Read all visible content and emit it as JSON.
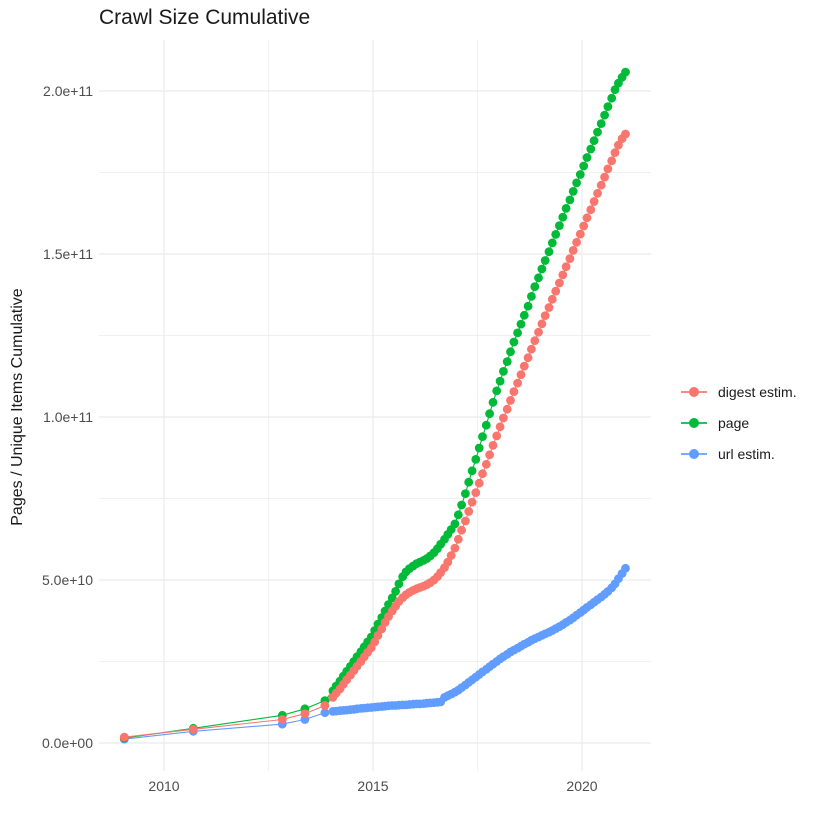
{
  "chart_data": {
    "type": "scatter",
    "title": "Crawl Size Cumulative",
    "xlabel": "",
    "ylabel": "Pages / Unique Items Cumulative",
    "legend_position": "right",
    "grid": true,
    "background": "#ffffff",
    "gridline_color": "#ebebeb",
    "tick_label_color": "#4d4d4d",
    "xlim": [
      2008.5,
      2021.6
    ],
    "ylim": [
      0,
      210000000000
    ],
    "y_units": "pages (values below in billions, 1e9)",
    "x_axis": {
      "major_ticks": [
        {
          "label": "2010",
          "year": 2010
        },
        {
          "label": "2015",
          "year": 2015
        },
        {
          "label": "2020",
          "year": 2020
        }
      ],
      "minor_years": [
        2012.5,
        2017.5
      ]
    },
    "y_axis": {
      "major_ticks": [
        {
          "label": "0.0e+00",
          "value_e9": 0
        },
        {
          "label": "5.0e+10",
          "value_e9": 50
        },
        {
          "label": "1.0e+11",
          "value_e9": 100
        },
        {
          "label": "1.5e+11",
          "value_e9": 150
        },
        {
          "label": "2.0e+11",
          "value_e9": 200
        }
      ],
      "minor_values_e9": [
        25,
        75,
        125,
        175
      ]
    },
    "series": [
      {
        "name": "digest estim.",
        "color": "#F8766D",
        "points": [
          [
            2009.05,
            1.8
          ],
          [
            2010.7,
            4.2
          ],
          [
            2012.83,
            7.2
          ],
          [
            2013.37,
            9
          ],
          [
            2013.85,
            11.5
          ],
          [
            2014.04,
            14
          ],
          [
            2014.12,
            15.3
          ],
          [
            2014.21,
            16.6
          ],
          [
            2014.29,
            18
          ],
          [
            2014.37,
            19.4
          ],
          [
            2014.46,
            20.8
          ],
          [
            2014.54,
            22.2
          ],
          [
            2014.62,
            23.6
          ],
          [
            2014.71,
            25
          ],
          [
            2014.79,
            26.4
          ],
          [
            2014.87,
            27.8
          ],
          [
            2014.96,
            29.2
          ],
          [
            2015.04,
            31
          ],
          [
            2015.12,
            33
          ],
          [
            2015.21,
            35
          ],
          [
            2015.29,
            37
          ],
          [
            2015.37,
            38.8
          ],
          [
            2015.46,
            40.5
          ],
          [
            2015.54,
            42
          ],
          [
            2015.62,
            43.4
          ],
          [
            2015.71,
            44.6
          ],
          [
            2015.79,
            45.5
          ],
          [
            2015.87,
            46.2
          ],
          [
            2015.96,
            46.8
          ],
          [
            2016.04,
            47.3
          ],
          [
            2016.12,
            47.7
          ],
          [
            2016.21,
            48.1
          ],
          [
            2016.29,
            48.6
          ],
          [
            2016.37,
            49.2
          ],
          [
            2016.46,
            50
          ],
          [
            2016.54,
            51
          ],
          [
            2016.62,
            52.3
          ],
          [
            2016.71,
            53.8
          ],
          [
            2016.79,
            55.5
          ],
          [
            2016.87,
            57.5
          ],
          [
            2016.96,
            59.8
          ],
          [
            2017.04,
            62.5
          ],
          [
            2017.12,
            65.3
          ],
          [
            2017.21,
            68.1
          ],
          [
            2017.29,
            71
          ],
          [
            2017.37,
            73.9
          ],
          [
            2017.46,
            76.8
          ],
          [
            2017.54,
            79.7
          ],
          [
            2017.62,
            82.6
          ],
          [
            2017.71,
            85.5
          ],
          [
            2017.79,
            88.4
          ],
          [
            2017.87,
            91.3
          ],
          [
            2017.96,
            94.2
          ],
          [
            2018.04,
            97
          ],
          [
            2018.12,
            99.7
          ],
          [
            2018.21,
            102.4
          ],
          [
            2018.29,
            105.1
          ],
          [
            2018.37,
            107.8
          ],
          [
            2018.46,
            110.4
          ],
          [
            2018.54,
            113
          ],
          [
            2018.62,
            115.6
          ],
          [
            2018.71,
            118.2
          ],
          [
            2018.79,
            120.8
          ],
          [
            2018.87,
            123.4
          ],
          [
            2018.96,
            126
          ],
          [
            2019.04,
            128.6
          ],
          [
            2019.12,
            131.1
          ],
          [
            2019.21,
            133.6
          ],
          [
            2019.29,
            136.1
          ],
          [
            2019.37,
            138.6
          ],
          [
            2019.46,
            141.1
          ],
          [
            2019.54,
            143.6
          ],
          [
            2019.62,
            146.1
          ],
          [
            2019.71,
            148.6
          ],
          [
            2019.79,
            151.1
          ],
          [
            2019.87,
            153.6
          ],
          [
            2019.96,
            156.1
          ],
          [
            2020.04,
            158.6
          ],
          [
            2020.12,
            161.1
          ],
          [
            2020.21,
            163.6
          ],
          [
            2020.29,
            166.1
          ],
          [
            2020.37,
            168.6
          ],
          [
            2020.46,
            171.1
          ],
          [
            2020.54,
            173.6
          ],
          [
            2020.62,
            176.1
          ],
          [
            2020.71,
            178.6
          ],
          [
            2020.79,
            181.1
          ],
          [
            2020.87,
            183.4
          ],
          [
            2020.96,
            185.4
          ],
          [
            2021.04,
            186.8
          ]
        ]
      },
      {
        "name": "page",
        "color": "#00BA38",
        "points": [
          [
            2009.05,
            1.5
          ],
          [
            2010.7,
            4.5
          ],
          [
            2012.83,
            8.5
          ],
          [
            2013.37,
            10.5
          ],
          [
            2013.85,
            13
          ],
          [
            2014.04,
            16
          ],
          [
            2014.12,
            17.5
          ],
          [
            2014.21,
            19
          ],
          [
            2014.29,
            20.5
          ],
          [
            2014.37,
            22
          ],
          [
            2014.46,
            23.5
          ],
          [
            2014.54,
            25
          ],
          [
            2014.62,
            26.5
          ],
          [
            2014.71,
            28
          ],
          [
            2014.79,
            29.5
          ],
          [
            2014.87,
            31
          ],
          [
            2014.96,
            32.5
          ],
          [
            2015.04,
            34.5
          ],
          [
            2015.12,
            36.5
          ],
          [
            2015.21,
            38.5
          ],
          [
            2015.29,
            40.5
          ],
          [
            2015.37,
            42.5
          ],
          [
            2015.46,
            44.5
          ],
          [
            2015.54,
            46.5
          ],
          [
            2015.62,
            48.8
          ],
          [
            2015.71,
            51
          ],
          [
            2015.79,
            52.5
          ],
          [
            2015.87,
            53.5
          ],
          [
            2015.96,
            54.3
          ],
          [
            2016.04,
            55
          ],
          [
            2016.12,
            55.5
          ],
          [
            2016.21,
            56
          ],
          [
            2016.29,
            56.6
          ],
          [
            2016.37,
            57.4
          ],
          [
            2016.46,
            58.4
          ],
          [
            2016.54,
            59.6
          ],
          [
            2016.62,
            61
          ],
          [
            2016.71,
            62.5
          ],
          [
            2016.79,
            64
          ],
          [
            2016.87,
            65.5
          ],
          [
            2016.96,
            67.2
          ],
          [
            2017.04,
            70
          ],
          [
            2017.12,
            73
          ],
          [
            2017.21,
            76.5
          ],
          [
            2017.29,
            80
          ],
          [
            2017.37,
            83.5
          ],
          [
            2017.46,
            87
          ],
          [
            2017.54,
            90.5
          ],
          [
            2017.62,
            94
          ],
          [
            2017.71,
            97.5
          ],
          [
            2017.79,
            101
          ],
          [
            2017.87,
            104.5
          ],
          [
            2017.96,
            108
          ],
          [
            2018.04,
            111
          ],
          [
            2018.12,
            114
          ],
          [
            2018.21,
            117
          ],
          [
            2018.29,
            120
          ],
          [
            2018.37,
            123
          ],
          [
            2018.46,
            125.8
          ],
          [
            2018.54,
            128.5
          ],
          [
            2018.62,
            131.2
          ],
          [
            2018.71,
            134
          ],
          [
            2018.79,
            137
          ],
          [
            2018.87,
            140
          ],
          [
            2018.96,
            142.7
          ],
          [
            2019.04,
            145.4
          ],
          [
            2019.12,
            148
          ],
          [
            2019.21,
            150.7
          ],
          [
            2019.29,
            153.4
          ],
          [
            2019.37,
            156
          ],
          [
            2019.46,
            158.7
          ],
          [
            2019.54,
            161.3
          ],
          [
            2019.62,
            164
          ],
          [
            2019.71,
            166.6
          ],
          [
            2019.79,
            169.2
          ],
          [
            2019.87,
            171.8
          ],
          [
            2019.96,
            174.4
          ],
          [
            2020.04,
            177
          ],
          [
            2020.12,
            179.6
          ],
          [
            2020.21,
            182.2
          ],
          [
            2020.29,
            184.8
          ],
          [
            2020.37,
            187.4
          ],
          [
            2020.46,
            190
          ],
          [
            2020.54,
            192.6
          ],
          [
            2020.62,
            195.2
          ],
          [
            2020.71,
            197.8
          ],
          [
            2020.79,
            200.4
          ],
          [
            2020.87,
            202.4
          ],
          [
            2020.96,
            204.2
          ],
          [
            2021.04,
            205.8
          ]
        ]
      },
      {
        "name": "url estim.",
        "color": "#619CFF",
        "points": [
          [
            2009.05,
            1.2
          ],
          [
            2010.7,
            3.6
          ],
          [
            2012.83,
            5.8
          ],
          [
            2013.37,
            7.2
          ],
          [
            2013.85,
            9.3
          ],
          [
            2014.04,
            9.7
          ],
          [
            2014.12,
            9.8
          ],
          [
            2014.21,
            9.9
          ],
          [
            2014.29,
            10
          ],
          [
            2014.37,
            10.1
          ],
          [
            2014.46,
            10.2
          ],
          [
            2014.54,
            10.3
          ],
          [
            2014.62,
            10.5
          ],
          [
            2014.71,
            10.6
          ],
          [
            2014.79,
            10.7
          ],
          [
            2014.87,
            10.8
          ],
          [
            2014.96,
            10.9
          ],
          [
            2015.04,
            11
          ],
          [
            2015.12,
            11.1
          ],
          [
            2015.21,
            11.2
          ],
          [
            2015.29,
            11.3
          ],
          [
            2015.37,
            11.4
          ],
          [
            2015.46,
            11.5
          ],
          [
            2015.54,
            11.5
          ],
          [
            2015.62,
            11.6
          ],
          [
            2015.71,
            11.7
          ],
          [
            2015.79,
            11.7
          ],
          [
            2015.87,
            11.8
          ],
          [
            2015.96,
            11.9
          ],
          [
            2016.04,
            12
          ],
          [
            2016.12,
            12
          ],
          [
            2016.21,
            12.1
          ],
          [
            2016.29,
            12.2
          ],
          [
            2016.37,
            12.3
          ],
          [
            2016.46,
            12.4
          ],
          [
            2016.54,
            12.5
          ],
          [
            2016.62,
            12.6
          ],
          [
            2016.71,
            14
          ],
          [
            2016.79,
            14.5
          ],
          [
            2016.87,
            15
          ],
          [
            2016.96,
            15.6
          ],
          [
            2017.04,
            16.2
          ],
          [
            2017.12,
            17
          ],
          [
            2017.21,
            17.8
          ],
          [
            2017.29,
            18.6
          ],
          [
            2017.37,
            19.4
          ],
          [
            2017.46,
            20.2
          ],
          [
            2017.54,
            21
          ],
          [
            2017.62,
            21.8
          ],
          [
            2017.71,
            22.6
          ],
          [
            2017.79,
            23.4
          ],
          [
            2017.87,
            24.2
          ],
          [
            2017.96,
            25
          ],
          [
            2018.04,
            25.8
          ],
          [
            2018.12,
            26.5
          ],
          [
            2018.21,
            27.2
          ],
          [
            2018.29,
            27.9
          ],
          [
            2018.37,
            28.5
          ],
          [
            2018.46,
            29.1
          ],
          [
            2018.54,
            29.7
          ],
          [
            2018.62,
            30.3
          ],
          [
            2018.71,
            30.9
          ],
          [
            2018.79,
            31.5
          ],
          [
            2018.87,
            32
          ],
          [
            2018.96,
            32.5
          ],
          [
            2019.04,
            33
          ],
          [
            2019.12,
            33.5
          ],
          [
            2019.21,
            34
          ],
          [
            2019.29,
            34.5
          ],
          [
            2019.37,
            35.1
          ],
          [
            2019.46,
            35.7
          ],
          [
            2019.54,
            36.3
          ],
          [
            2019.62,
            37
          ],
          [
            2019.71,
            37.7
          ],
          [
            2019.79,
            38.4
          ],
          [
            2019.87,
            39.2
          ],
          [
            2019.96,
            40
          ],
          [
            2020.04,
            40.8
          ],
          [
            2020.12,
            41.6
          ],
          [
            2020.21,
            42.4
          ],
          [
            2020.29,
            43.2
          ],
          [
            2020.37,
            44
          ],
          [
            2020.46,
            44.8
          ],
          [
            2020.54,
            45.6
          ],
          [
            2020.62,
            46.5
          ],
          [
            2020.71,
            47.6
          ],
          [
            2020.79,
            48.8
          ],
          [
            2020.87,
            50.4
          ],
          [
            2020.96,
            52
          ],
          [
            2021.04,
            53.6
          ]
        ]
      }
    ]
  }
}
